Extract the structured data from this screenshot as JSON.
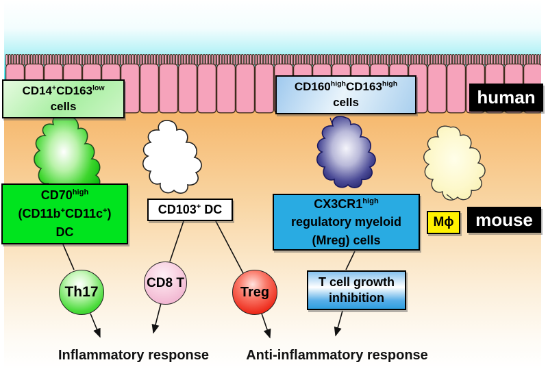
{
  "colors": {
    "lumen-cyan": "#41E8F2",
    "epithelium-pink": "#F6A3BB",
    "lamina-orange": "#F5B365",
    "cd14-box-green": "#A8EFA2",
    "cd160-box-blue": "#A9CFEE",
    "cd70-box-green": "#00E41E",
    "cx3cr1-box-blue": "#29ABE2",
    "mphi-box-yellow": "#FFF100",
    "species-box-black": "#000000",
    "th17-green": "#2ED32E",
    "cd8t-pink": "#F4B8D2",
    "treg-red": "#E92020",
    "tcell-box-blue": "#2F9FE0"
  },
  "human_row": {
    "cd14_box": {
      "line1": "CD14^+^CD163^low^",
      "line2": "cells"
    },
    "cd160_box": {
      "line1": "CD160^high^CD163^high^",
      "line2": "cells"
    },
    "species_label": "human"
  },
  "mouse_row": {
    "cd70_box": {
      "line1": "CD70^high^",
      "line2": "(CD11b^+^CD11c^+^)",
      "line3": "DC"
    },
    "cd103_box": {
      "label": "CD103^+^ DC"
    },
    "cx3cr1_box": {
      "line1": "CX3CR1^high^",
      "line2": "regulatory myeloid",
      "line3": "(Mreg) cells"
    },
    "mphi_box": {
      "label": "Mϕ"
    },
    "species_label": "mouse"
  },
  "t_cells": {
    "th17": "Th17",
    "cd8": "CD8 T",
    "treg": "Treg"
  },
  "process_box": {
    "line1": "T cell growth",
    "line2": "inhibition"
  },
  "outcomes": {
    "inflammatory": "Inflammatory response",
    "anti_inflammatory": "Anti-inflammatory response"
  }
}
